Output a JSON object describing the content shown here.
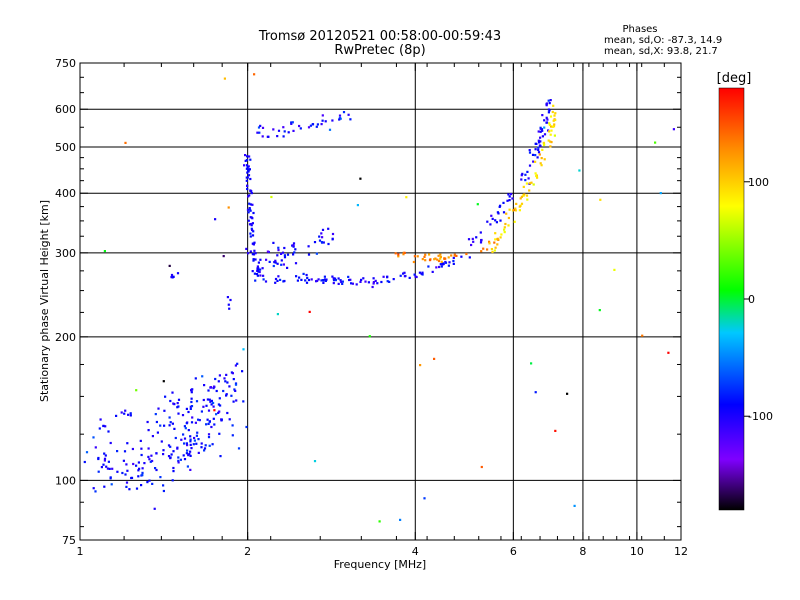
{
  "chart_data": {
    "type": "scatter",
    "title_line1": "Tromsø 20120521 00:58:00-00:59:43",
    "title_line2": "RwPretec (8p)",
    "stats": {
      "heading": "Phases",
      "line1": "mean, sd,O: -87.3, 14.9",
      "line2": "mean, sd,X:  93.8, 21.7"
    },
    "xlabel": "Frequency [MHz]",
    "ylabel": "Stationary phase Virtual Height [km]",
    "x_scale": "log",
    "y_scale": "log",
    "xlim": [
      1,
      12
    ],
    "ylim": [
      75,
      750
    ],
    "x_ticks": [
      1,
      2,
      4,
      6,
      8,
      10,
      12
    ],
    "y_ticks": [
      75,
      100,
      200,
      300,
      400,
      500,
      600,
      750
    ],
    "x_gridlines": [
      2,
      4,
      6,
      8,
      10
    ],
    "y_gridlines": [
      100,
      200,
      300,
      400,
      500,
      600
    ],
    "grid": true,
    "colorbar": {
      "label": "[deg]",
      "range": [
        -180,
        180
      ],
      "ticks": [
        -100,
        0,
        100
      ],
      "colors": [
        "#000000",
        "#7f00ff",
        "#0000ff",
        "#00c8ff",
        "#00ff00",
        "#ffff00",
        "#ff8800",
        "#ff0000"
      ]
    },
    "traces": [
      {
        "kind": "band",
        "path": [
          [
            1.05,
            108
          ],
          [
            1.2,
            106
          ],
          [
            1.35,
            108
          ],
          [
            1.5,
            113
          ],
          [
            1.6,
            122
          ],
          [
            1.7,
            133
          ],
          [
            1.8,
            145
          ],
          [
            1.9,
            153
          ]
        ],
        "spread_frac": 0.07,
        "n": 190,
        "phase": -90,
        "phase_sd": 12
      },
      {
        "kind": "band",
        "path": [
          [
            1.35,
            128
          ],
          [
            1.5,
            140
          ],
          [
            1.65,
            150
          ],
          [
            1.8,
            158
          ],
          [
            1.9,
            165
          ]
        ],
        "spread_frac": 0.05,
        "n": 60,
        "phase": -92,
        "phase_sd": 10
      },
      {
        "kind": "band",
        "path": [
          [
            1.08,
            130
          ],
          [
            1.15,
            134
          ],
          [
            1.25,
            140
          ]
        ],
        "spread_frac": 0.02,
        "n": 12,
        "phase": -95,
        "phase_sd": 8
      },
      {
        "kind": "band",
        "path": [
          [
            2.0,
            480
          ],
          [
            2.0,
            420
          ],
          [
            2.02,
            380
          ],
          [
            2.03,
            340
          ],
          [
            2.05,
            300
          ],
          [
            2.1,
            270
          ],
          [
            2.3,
            265
          ],
          [
            2.6,
            264
          ],
          [
            3.0,
            263
          ],
          [
            3.3,
            262
          ],
          [
            3.6,
            264
          ],
          [
            3.9,
            270
          ],
          [
            4.2,
            276
          ],
          [
            4.6,
            286
          ],
          [
            5.0,
            295
          ]
        ],
        "spread_frac": 0.012,
        "n": 170,
        "phase": -95,
        "phase_sd": 10
      },
      {
        "kind": "band",
        "path": [
          [
            2.0,
            300
          ],
          [
            2.05,
            290
          ],
          [
            2.15,
            280
          ],
          [
            2.25,
            285
          ],
          [
            2.35,
            300
          ],
          [
            2.45,
            310
          ]
        ],
        "spread_frac": 0.04,
        "n": 50,
        "phase": -96,
        "phase_sd": 12
      },
      {
        "kind": "band",
        "path": [
          [
            2.65,
            310
          ],
          [
            2.75,
            320
          ],
          [
            2.8,
            330
          ]
        ],
        "spread_frac": 0.03,
        "n": 16,
        "phase": -92,
        "phase_sd": 12
      },
      {
        "kind": "band",
        "path": [
          [
            2.05,
            560
          ],
          [
            2.2,
            540
          ],
          [
            2.4,
            545
          ],
          [
            2.6,
            555
          ],
          [
            2.85,
            570
          ],
          [
            3.0,
            585
          ],
          [
            3.1,
            598
          ]
        ],
        "spread_frac": 0.02,
        "n": 40,
        "phase": -85,
        "phase_sd": 18
      },
      {
        "kind": "band",
        "path": [
          [
            3.6,
            298
          ],
          [
            3.9,
            294
          ],
          [
            4.2,
            292
          ],
          [
            4.6,
            293
          ],
          [
            5.0,
            298
          ],
          [
            5.3,
            305
          ],
          [
            5.6,
            318
          ]
        ],
        "spread_frac": 0.01,
        "n": 40,
        "phase": 130,
        "phase_sd": 12
      },
      {
        "kind": "band",
        "path": [
          [
            4.9,
            300
          ],
          [
            5.2,
            320
          ],
          [
            5.5,
            345
          ],
          [
            5.8,
            380
          ],
          [
            6.05,
            410
          ],
          [
            6.3,
            440
          ],
          [
            6.5,
            470
          ],
          [
            6.7,
            520
          ],
          [
            6.85,
            570
          ],
          [
            6.95,
            620
          ]
        ],
        "spread_frac": 0.02,
        "n": 80,
        "phase": -95,
        "phase_sd": 10
      },
      {
        "kind": "band",
        "path": [
          [
            5.4,
            305
          ],
          [
            5.7,
            330
          ],
          [
            6.0,
            360
          ],
          [
            6.3,
            395
          ],
          [
            6.55,
            430
          ],
          [
            6.8,
            480
          ],
          [
            7.0,
            530
          ],
          [
            7.1,
            600
          ]
        ],
        "spread_frac": 0.02,
        "n": 80,
        "phase": 95,
        "phase_sd": 14
      },
      {
        "kind": "band",
        "path": [
          [
            1.45,
            268
          ],
          [
            1.5,
            270
          ]
        ],
        "spread_frac": 0.01,
        "n": 6,
        "phase": -95,
        "phase_sd": 5
      },
      {
        "kind": "band",
        "path": [
          [
            1.85,
            225
          ],
          [
            1.85,
            245
          ]
        ],
        "spread_frac": 0.01,
        "n": 4,
        "phase": -95,
        "phase_sd": 5
      },
      {
        "kind": "scatter",
        "xlim": [
          1.0,
          12
        ],
        "ylim": [
          75,
          740
        ],
        "n": 45,
        "phase": 20,
        "phase_sd": 120
      }
    ]
  }
}
